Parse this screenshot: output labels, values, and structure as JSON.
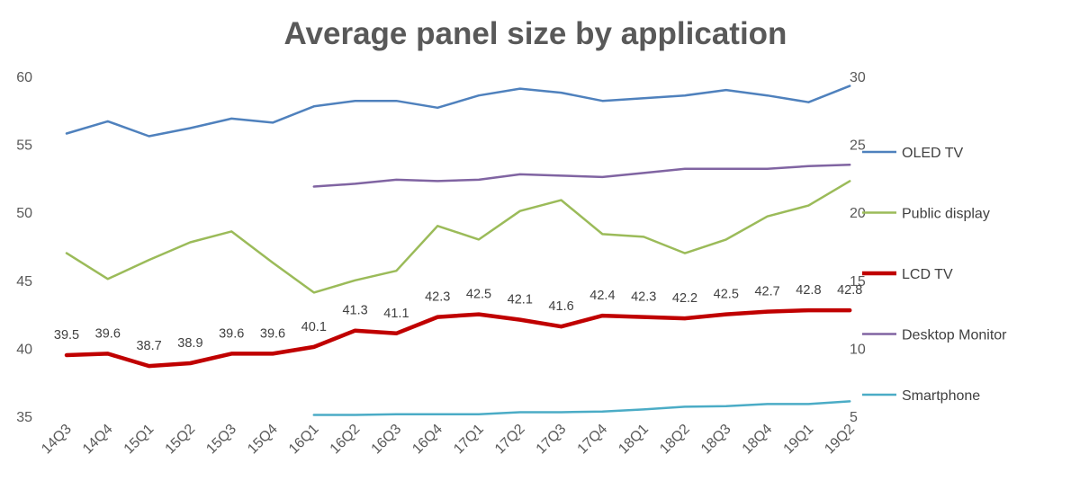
{
  "chart_data": {
    "type": "line",
    "title": "Average panel size by application",
    "categories": [
      "14Q3",
      "14Q4",
      "15Q1",
      "15Q2",
      "15Q3",
      "15Q4",
      "16Q1",
      "16Q2",
      "16Q3",
      "16Q4",
      "17Q1",
      "17Q2",
      "17Q3",
      "17Q4",
      "18Q1",
      "18Q2",
      "18Q3",
      "18Q4",
      "19Q1",
      "19Q2"
    ],
    "y_left": {
      "min": 35,
      "max": 60,
      "ticks": [
        35,
        40,
        45,
        50,
        55,
        60
      ]
    },
    "y_right": {
      "min": 5,
      "max": 30,
      "ticks": [
        5,
        10,
        15,
        20,
        25,
        30
      ]
    },
    "grid": false,
    "legend_position": "right",
    "series": [
      {
        "name": "OLED TV",
        "axis": "left",
        "color": "#4F81BD",
        "width": 2.5,
        "labels": false,
        "values": [
          55.8,
          56.7,
          55.6,
          56.2,
          56.9,
          56.6,
          57.8,
          58.2,
          58.2,
          57.7,
          58.6,
          59.1,
          58.8,
          58.2,
          58.4,
          58.6,
          59.0,
          58.6,
          58.1,
          59.3
        ]
      },
      {
        "name": "Public display",
        "axis": "left",
        "color": "#9BBB59",
        "width": 2.5,
        "labels": false,
        "values": [
          47.0,
          45.1,
          46.5,
          47.8,
          48.6,
          46.3,
          44.1,
          45.0,
          45.7,
          49.0,
          48.0,
          50.1,
          50.9,
          48.4,
          48.2,
          47.0,
          48.0,
          49.7,
          50.5,
          52.3
        ]
      },
      {
        "name": "LCD TV",
        "axis": "left",
        "color": "#C00000",
        "width": 4.5,
        "labels": true,
        "values": [
          39.5,
          39.6,
          38.7,
          38.9,
          39.6,
          39.6,
          40.1,
          41.3,
          41.1,
          42.3,
          42.5,
          42.1,
          41.6,
          42.4,
          42.3,
          42.2,
          42.5,
          42.7,
          42.8,
          42.8
        ]
      },
      {
        "name": "Desktop Monitor",
        "axis": "right",
        "color": "#8064A2",
        "width": 2.5,
        "labels": false,
        "values": [
          null,
          null,
          null,
          null,
          null,
          null,
          21.9,
          22.1,
          22.4,
          22.3,
          22.4,
          22.8,
          22.7,
          22.6,
          22.9,
          23.2,
          23.2,
          23.2,
          23.4,
          23.5
        ]
      },
      {
        "name": "Smartphone",
        "axis": "right",
        "color": "#4BACC6",
        "width": 2.5,
        "labels": false,
        "values": [
          null,
          null,
          null,
          null,
          null,
          null,
          5.1,
          5.1,
          5.15,
          5.15,
          5.15,
          5.3,
          5.3,
          5.35,
          5.5,
          5.7,
          5.75,
          5.9,
          5.9,
          6.1
        ]
      }
    ]
  }
}
